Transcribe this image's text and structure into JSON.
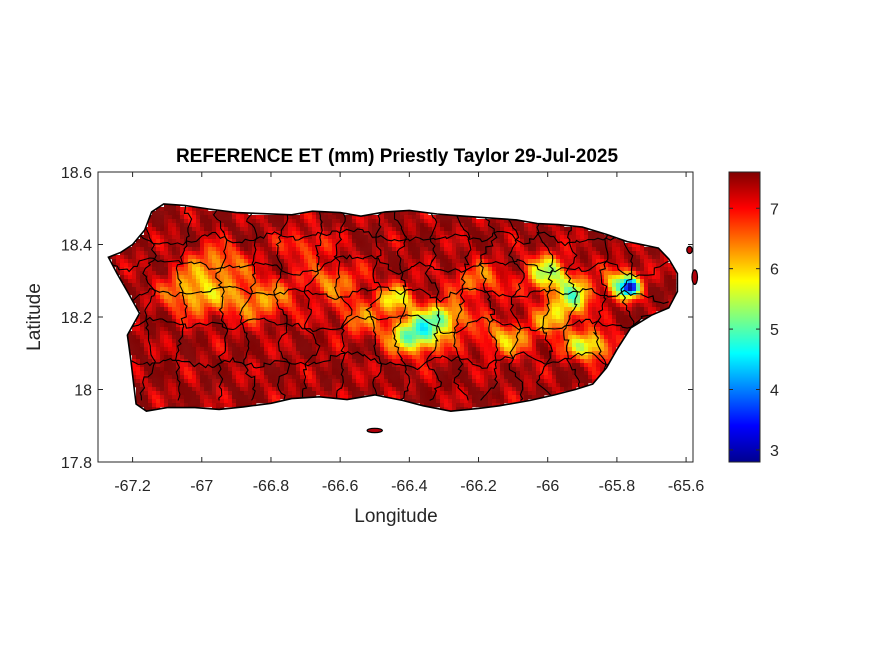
{
  "chart_data": {
    "type": "heatmap",
    "title": "REFERENCE ET (mm) Priestly Taylor 29-Jul-2025",
    "xlabel": "Longitude",
    "ylabel": "Latitude",
    "xlim": [
      -67.3,
      -65.58
    ],
    "ylim": [
      17.8,
      18.6
    ],
    "xticks": [
      -67.2,
      -67,
      -66.8,
      -66.6,
      -66.4,
      -66.2,
      -66,
      -65.8,
      -65.6
    ],
    "xtick_labels": [
      "-67.2",
      "-67",
      "-66.8",
      "-66.6",
      "-66.4",
      "-66.2",
      "-66",
      "-65.8",
      "-65.6"
    ],
    "yticks": [
      17.8,
      18,
      18.2,
      18.4,
      18.6
    ],
    "ytick_labels": [
      "17.8",
      "18",
      "18.2",
      "18.4",
      "18.6"
    ],
    "colorbar": {
      "colormap": "jet",
      "range": [
        2.8,
        7.6
      ],
      "ticks": [
        3,
        4,
        5,
        6,
        7
      ],
      "tick_labels": [
        "3",
        "4",
        "5",
        "6",
        "7"
      ]
    },
    "grid": false
  }
}
